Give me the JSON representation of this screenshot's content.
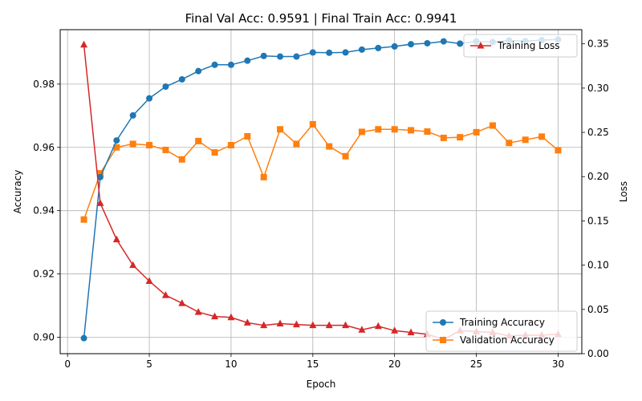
{
  "chart_data": {
    "type": "line",
    "title": "Final Val Acc: 0.9591 | Final Train Acc: 0.9941",
    "xlabel": "Epoch",
    "ylabel": "Accuracy",
    "ylabel_right": "Loss",
    "xlim": [
      -0.45,
      31.45
    ],
    "ylim": [
      0.8948,
      0.9972
    ],
    "ylim_right": [
      0.0,
      0.366
    ],
    "x_ticks": [
      0,
      5,
      10,
      15,
      20,
      25,
      30
    ],
    "y_ticks": [
      0.9,
      0.92,
      0.94,
      0.96,
      0.98
    ],
    "y_tick_labels": [
      "0.90",
      "0.92",
      "0.94",
      "0.96",
      "0.98"
    ],
    "y_ticks_right": [
      0.0,
      0.05,
      0.1,
      0.15,
      0.2,
      0.25,
      0.3,
      0.35
    ],
    "y_tick_labels_right": [
      "0.00",
      "0.05",
      "0.10",
      "0.15",
      "0.20",
      "0.25",
      "0.30",
      "0.35"
    ],
    "grid": true,
    "x": [
      1,
      2,
      3,
      4,
      5,
      6,
      7,
      8,
      9,
      10,
      11,
      12,
      13,
      14,
      15,
      16,
      17,
      18,
      19,
      20,
      21,
      22,
      23,
      24,
      25,
      26,
      27,
      28,
      29,
      30
    ],
    "series": [
      {
        "name": "Training Accuracy",
        "axis": "left",
        "color": "#1f77b4",
        "marker": "circle",
        "values": [
          0.8997,
          0.9506,
          0.9622,
          0.9701,
          0.9755,
          0.9792,
          0.9815,
          0.9841,
          0.9861,
          0.9861,
          0.9874,
          0.9889,
          0.9887,
          0.9887,
          0.99,
          0.9899,
          0.99,
          0.9909,
          0.9914,
          0.9919,
          0.9926,
          0.9929,
          0.9935,
          0.9928,
          0.9935,
          0.9933,
          0.9938,
          0.9936,
          0.9939,
          0.9941
        ]
      },
      {
        "name": "Validation Accuracy",
        "axis": "left",
        "color": "#ff7f0e",
        "marker": "square",
        "values": [
          0.9372,
          0.9518,
          0.96,
          0.9611,
          0.9607,
          0.9592,
          0.9562,
          0.962,
          0.9584,
          0.9607,
          0.9635,
          0.9506,
          0.9657,
          0.9611,
          0.9673,
          0.9603,
          0.9572,
          0.9649,
          0.9657,
          0.9657,
          0.9654,
          0.965,
          0.963,
          0.9632,
          0.9648,
          0.9669,
          0.9614,
          0.9624,
          0.9634,
          0.9591
        ]
      },
      {
        "name": "Training Loss",
        "axis": "right",
        "color": "#d62728",
        "marker": "triangle",
        "values": [
          0.349,
          0.17,
          0.129,
          0.1,
          0.082,
          0.066,
          0.057,
          0.047,
          0.042,
          0.041,
          0.035,
          0.032,
          0.034,
          0.033,
          0.032,
          0.032,
          0.032,
          0.027,
          0.031,
          0.026,
          0.024,
          0.022,
          0.016,
          0.026,
          0.025,
          0.024,
          0.02,
          0.021,
          0.021,
          0.022
        ]
      }
    ],
    "legend_left": {
      "placement": "lower-right",
      "entries": [
        "Training Accuracy",
        "Validation Accuracy"
      ]
    },
    "legend_right": {
      "placement": "upper-right",
      "entries": [
        "Training Loss"
      ]
    }
  }
}
